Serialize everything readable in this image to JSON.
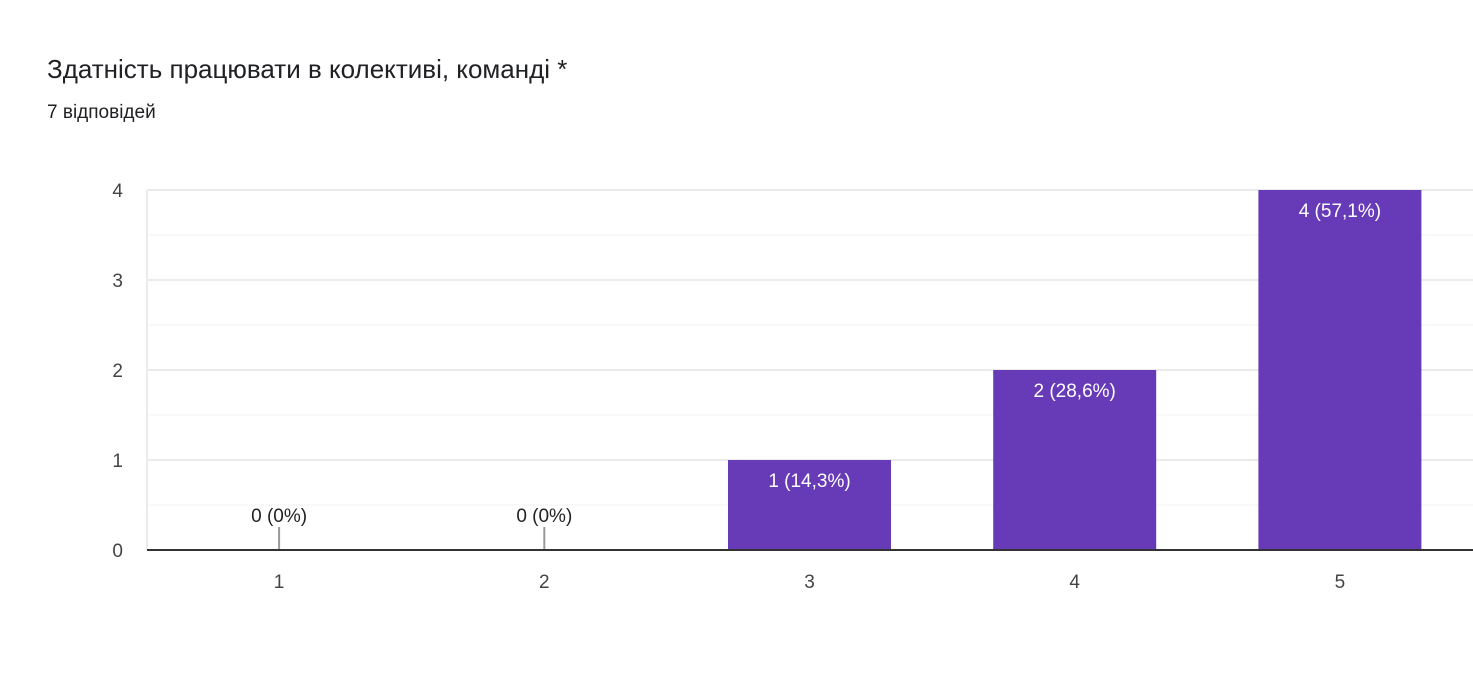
{
  "header": {
    "title": "Здатність працювати в колективі, команді *",
    "responses": "7 відповідей"
  },
  "colors": {
    "bar": "#673ab7",
    "grid": "#ebebeb",
    "axis": "#333333",
    "text": "#444444"
  },
  "chart_data": {
    "type": "bar",
    "title": "Здатність працювати в колективі, команді *",
    "categories": [
      "1",
      "2",
      "3",
      "4",
      "5"
    ],
    "values": [
      0,
      0,
      1,
      2,
      4
    ],
    "data_labels": [
      "0 (0%)",
      "0 (0%)",
      "1 (14,3%)",
      "2 (28,6%)",
      "4 (57,1%)"
    ],
    "y_ticks": [
      "0",
      "1",
      "2",
      "3",
      "4"
    ],
    "ylim": [
      0,
      4
    ],
    "xlabel": "",
    "ylabel": "",
    "grid": true
  }
}
